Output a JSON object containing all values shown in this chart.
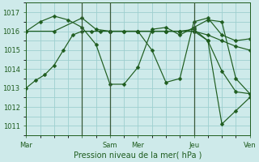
{
  "xlabel": "Pression niveau de la mer( hPa )",
  "bg_color": "#ceeaea",
  "grid_color": "#9ecfcf",
  "line_color": "#1e5c1e",
  "vline_color": "#3a5a3a",
  "ylim": [
    1010.5,
    1017.5
  ],
  "yticks": [
    1011,
    1012,
    1013,
    1014,
    1015,
    1016,
    1017
  ],
  "xlim": [
    0,
    96
  ],
  "day_ticks": [
    0,
    24,
    36,
    48,
    72,
    96
  ],
  "day_labels": [
    "Mar",
    "",
    "Sam",
    "Mer",
    "Jeu",
    "Ven"
  ],
  "vlines": [
    24,
    36,
    72
  ],
  "line1_x": [
    0,
    4,
    8,
    12,
    16,
    20,
    24,
    28,
    32,
    36,
    42,
    48,
    54,
    60,
    66,
    72,
    78,
    84,
    90,
    96
  ],
  "line1_y": [
    1013.0,
    1013.4,
    1013.7,
    1014.2,
    1015.0,
    1015.8,
    1016.0,
    1016.0,
    1016.0,
    1016.0,
    1016.0,
    1016.0,
    1016.0,
    1016.0,
    1016.0,
    1016.0,
    1015.8,
    1015.5,
    1015.2,
    1015.0
  ],
  "line2_x": [
    0,
    6,
    12,
    18,
    24,
    30,
    36,
    42,
    48,
    54,
    60,
    66,
    72,
    78,
    84,
    90,
    96
  ],
  "line2_y": [
    1016.0,
    1016.5,
    1016.8,
    1016.6,
    1016.2,
    1015.3,
    1013.2,
    1013.2,
    1014.1,
    1016.1,
    1016.2,
    1015.8,
    1016.2,
    1016.6,
    1016.5,
    1013.5,
    1012.7
  ],
  "line3_x": [
    0,
    12,
    24,
    30,
    36,
    48,
    60,
    66,
    72,
    78,
    84,
    90,
    96
  ],
  "line3_y": [
    1016.0,
    1016.0,
    1016.7,
    1016.1,
    1016.0,
    1016.0,
    1016.0,
    1016.0,
    1016.1,
    1015.5,
    1013.9,
    1012.8,
    1012.7
  ],
  "line4_x": [
    36,
    42,
    48,
    54,
    60,
    66,
    72,
    78,
    84,
    90,
    96
  ],
  "line4_y": [
    1016.0,
    1016.0,
    1016.0,
    1015.0,
    1013.3,
    1013.5,
    1016.5,
    1016.7,
    1015.8,
    1015.5,
    1015.6
  ],
  "line5_x": [
    36,
    48,
    60,
    66,
    72,
    78,
    84,
    90,
    96
  ],
  "line5_y": [
    1016.0,
    1016.0,
    1016.0,
    1016.0,
    1016.0,
    1015.5,
    1011.1,
    1011.8,
    1012.5
  ],
  "marker": "D",
  "marker_size": 2.5,
  "lw": 0.85
}
